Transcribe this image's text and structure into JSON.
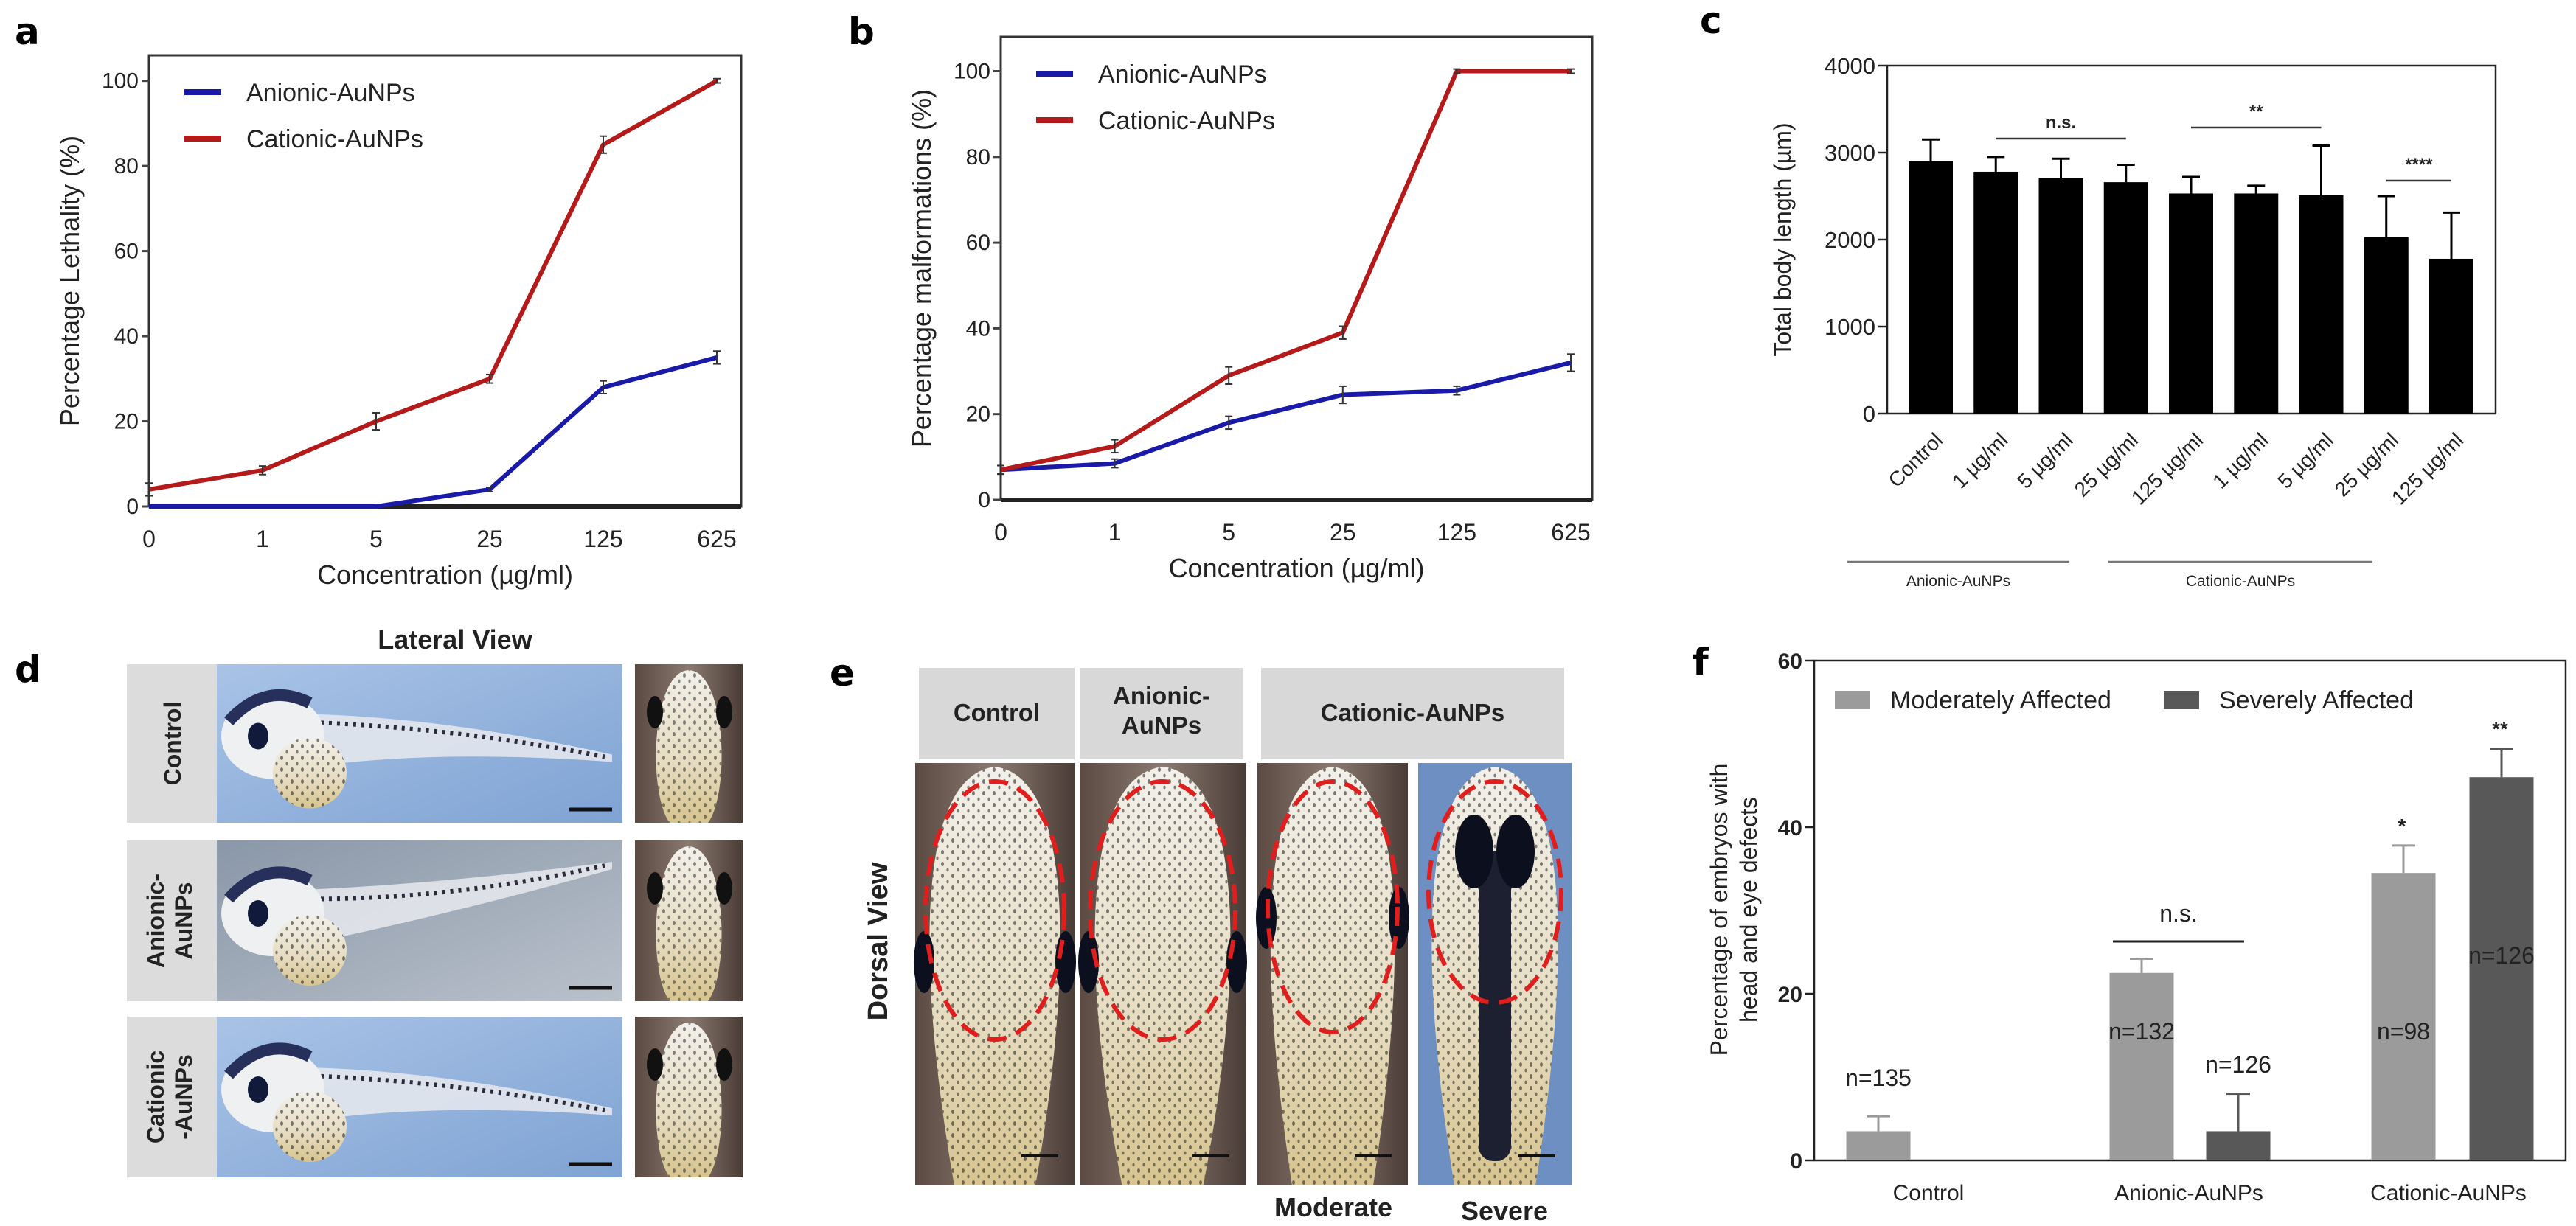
{
  "panels": {
    "a": {
      "letter": "a"
    },
    "b": {
      "letter": "b"
    },
    "c": {
      "letter": "c"
    },
    "d": {
      "letter": "d",
      "title": "Lateral View",
      "rows": [
        "Control",
        "Anionic-\nAuNPs",
        "Cationic\n-AuNPs"
      ]
    },
    "e": {
      "letter": "e",
      "side_label": "Dorsal View",
      "headers": [
        "Control",
        "Anionic-\nAuNPs",
        "Cationic-AuNPs"
      ],
      "sub_labels": [
        "Moderate",
        "Severe"
      ]
    },
    "f": {
      "letter": "f"
    }
  },
  "colors": {
    "anionic": "#1a1aa8",
    "cationic": "#b51a1a",
    "moderate": "#9b9b9b",
    "severe": "#585858",
    "bar_black": "#000000",
    "dashed_ellipse": "#e01e1e"
  },
  "chart_data": [
    {
      "id": "a",
      "type": "line",
      "xlabel": "Concentration (µg/ml)",
      "ylabel": "Percentage Lethality (%)",
      "categories": [
        "0",
        "1",
        "5",
        "25",
        "125",
        "625"
      ],
      "ylim": [
        0,
        106
      ],
      "yticks": [
        0,
        20,
        40,
        60,
        80,
        100
      ],
      "legend_position": "top-left",
      "grid": false,
      "series": [
        {
          "name": "Anionic-AuNPs",
          "color": "#1a1aa8",
          "values": [
            0,
            0,
            0,
            4,
            28,
            35
          ],
          "errors": [
            0,
            0,
            0,
            0.5,
            1.5,
            1.5
          ]
        },
        {
          "name": "Cationic-AuNPs",
          "color": "#b51a1a",
          "values": [
            4,
            8.5,
            20,
            30,
            85,
            100
          ],
          "errors": [
            1.5,
            1,
            2,
            1,
            2,
            0.5
          ]
        }
      ]
    },
    {
      "id": "b",
      "type": "line",
      "xlabel": "Concentration (µg/ml)",
      "ylabel": "Percentage malformations (%)",
      "categories": [
        "0",
        "1",
        "5",
        "25",
        "125",
        "625"
      ],
      "ylim": [
        0,
        108
      ],
      "yticks": [
        0,
        20,
        40,
        60,
        80,
        100
      ],
      "legend_position": "top-left",
      "grid": false,
      "series": [
        {
          "name": "Anionic-AuNPs",
          "color": "#1a1aa8",
          "values": [
            7,
            8.5,
            18,
            24.5,
            25.5,
            32
          ],
          "errors": [
            1,
            1,
            1.5,
            2,
            1,
            2
          ]
        },
        {
          "name": "Cationic-AuNPs",
          "color": "#b51a1a",
          "values": [
            7,
            12.5,
            29,
            39,
            100,
            100
          ],
          "errors": [
            1,
            1.5,
            2,
            1.5,
            0.5,
            0.5
          ]
        }
      ]
    },
    {
      "id": "c",
      "type": "bar",
      "ylabel": "Total body length (µm)",
      "categories": [
        "Control",
        "1 µg/ml",
        "5 µg/ml",
        "25 µg/ml",
        "125 µg/ml",
        "1 µg/ml",
        "5 µg/ml",
        "25 µg/ml",
        "125 µg/ml"
      ],
      "values": [
        2900,
        2780,
        2710,
        2660,
        2530,
        2530,
        2510,
        2030,
        1780
      ],
      "error_upper": [
        3150,
        2950,
        2930,
        2860,
        2720,
        2620,
        3080,
        2500,
        2310
      ],
      "ylim": [
        0,
        4000
      ],
      "yticks": [
        0,
        1000,
        2000,
        3000,
        4000
      ],
      "groups": [
        {
          "label": "Anionic-AuNPs",
          "from": 1,
          "to": 4
        },
        {
          "label": "Cationic-AuNPs",
          "from": 5,
          "to": 8
        }
      ],
      "significance": [
        {
          "label": "n.s.",
          "from": 1,
          "to": 3
        },
        {
          "label": "**",
          "from": 4,
          "to": 6
        },
        {
          "label": "****",
          "from": 7,
          "to": 8
        }
      ]
    },
    {
      "id": "f",
      "type": "bar",
      "ylabel": "Percentage of embryos with\nhead and eye defects",
      "categories": [
        "Control",
        "Anionic-AuNPs",
        "Cationic-AuNPs"
      ],
      "ylim": [
        0,
        60
      ],
      "yticks": [
        0,
        20,
        40,
        60
      ],
      "legend_position": "top",
      "series": [
        {
          "name": "Moderately Affected",
          "color": "#9b9b9b",
          "values": [
            3.5,
            22.5,
            34.5
          ],
          "error_upper": [
            5.3,
            24.2,
            37.8
          ],
          "n_labels": [
            "n=135",
            "n=132",
            "n=98"
          ],
          "stars": [
            "",
            "",
            "*"
          ]
        },
        {
          "name": "Severely Affected",
          "color": "#585858",
          "values": [
            null,
            3.5,
            46
          ],
          "error_upper": [
            null,
            8,
            49.4
          ],
          "n_labels": [
            "",
            "n=126",
            "n=126"
          ],
          "stars": [
            "",
            "",
            "**"
          ]
        }
      ],
      "significance": [
        {
          "label": "n.s.",
          "group": 1
        }
      ]
    }
  ]
}
